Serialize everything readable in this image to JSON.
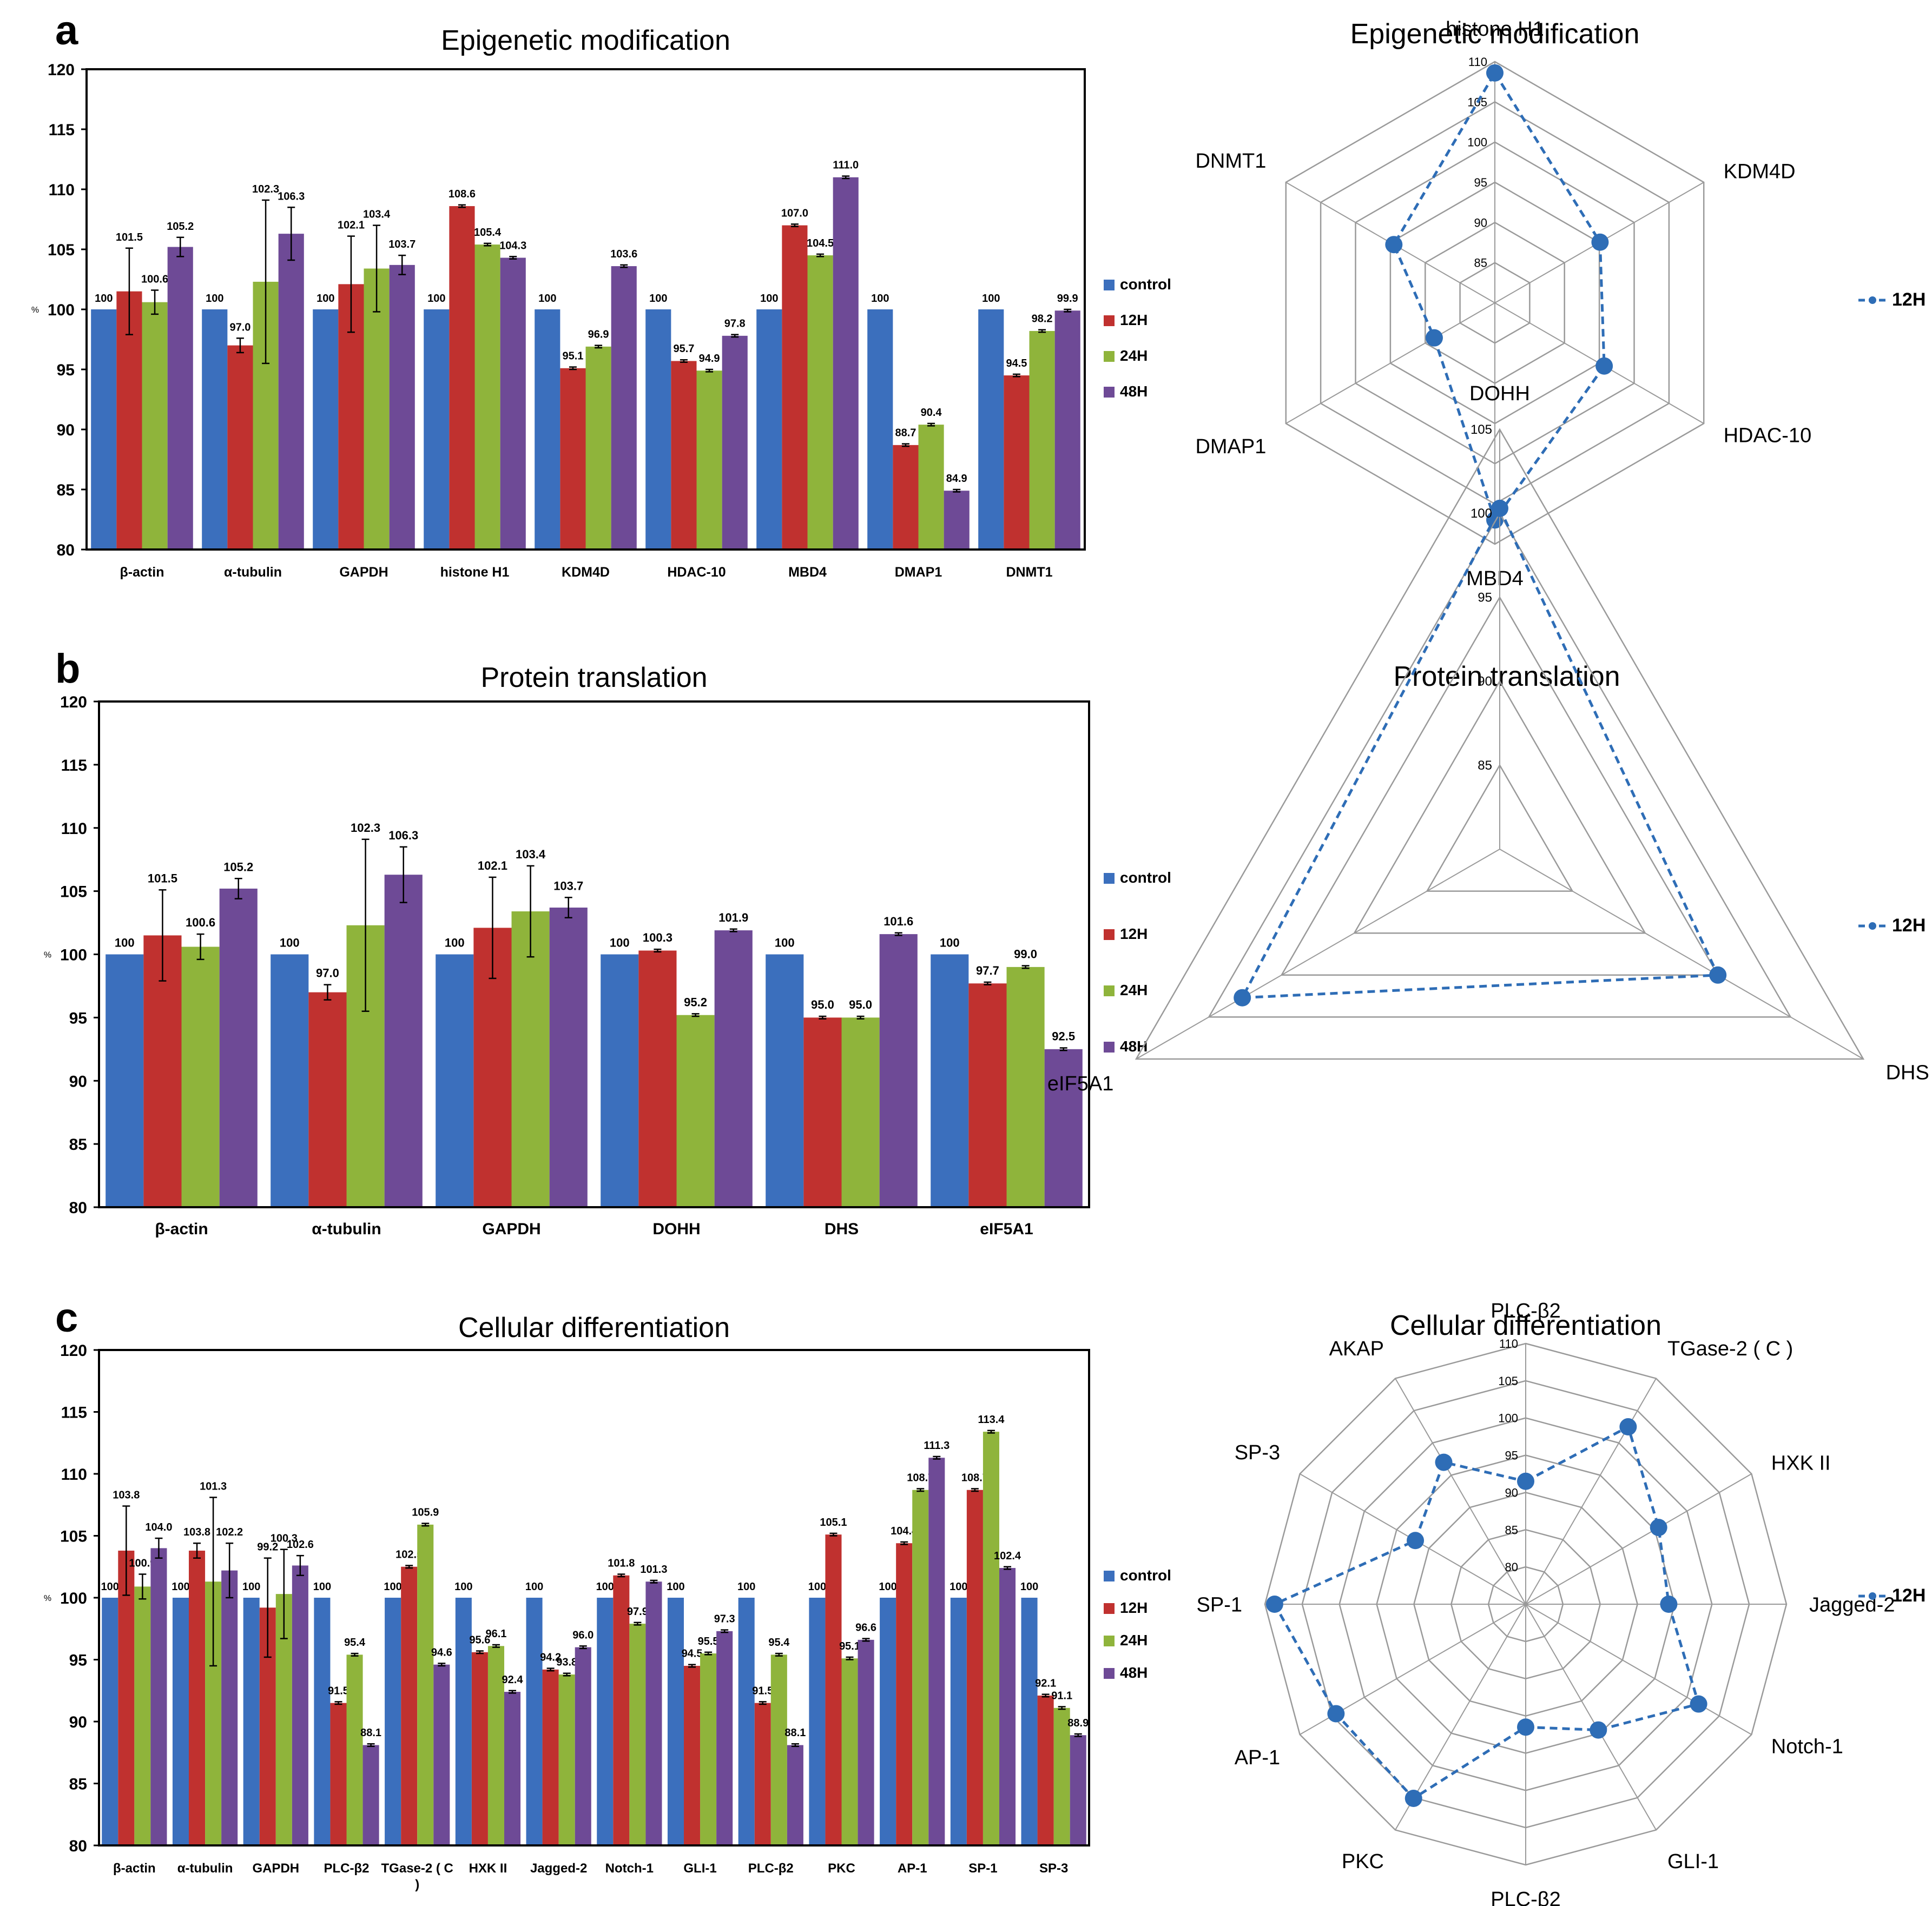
{
  "colors": {
    "control": "#3b6fbd",
    "h12": "#c0312f",
    "h24": "#8fb43b",
    "h48": "#6e4a96",
    "radar": "#2e6db6",
    "axis": "#000000",
    "grid": "#9a9a9a"
  },
  "panel_letters": [
    "a",
    "b",
    "c"
  ],
  "chart_data": [
    {
      "id": "a-bar",
      "type": "bar",
      "panel": "a",
      "title": "Epigenetic modification",
      "ylabel": "%",
      "xlabel": "",
      "ylim": [
        80,
        120
      ],
      "yticks": [
        80,
        85,
        90,
        95,
        100,
        105,
        110,
        115,
        120
      ],
      "categories": [
        "β-actin",
        "α-tubulin",
        "GAPDH",
        "histone H1",
        "KDM4D",
        "HDAC-10",
        "MBD4",
        "DMAP1",
        "DNMT1"
      ],
      "series": [
        {
          "name": "control",
          "key": "control",
          "values": [
            100,
            100,
            100,
            100,
            100,
            100,
            100,
            100,
            100
          ],
          "labels": [
            "100",
            "100",
            "100",
            "100",
            "100",
            "100",
            "100",
            "100",
            "100"
          ],
          "errors": [
            0,
            0,
            0,
            0,
            0,
            0,
            0,
            0,
            0
          ]
        },
        {
          "name": "12H",
          "key": "h12",
          "values": [
            101.5,
            97.0,
            102.1,
            108.6,
            95.1,
            95.7,
            107.0,
            88.7,
            94.5
          ],
          "labels": [
            "101.5",
            "97.0",
            "102.1",
            "108.6",
            "95.1",
            "95.7",
            "107.0",
            "88.7",
            "94.5"
          ],
          "errors": [
            3.6,
            0.6,
            4.0,
            0.1,
            0.1,
            0.1,
            0.1,
            0.1,
            0.1
          ]
        },
        {
          "name": "24H",
          "key": "h24",
          "values": [
            100.6,
            102.3,
            103.4,
            105.4,
            96.9,
            94.9,
            104.5,
            90.4,
            98.2
          ],
          "labels": [
            "100.6",
            "102.3",
            "103.4",
            "105.4",
            "96.9",
            "94.9",
            "104.5",
            "90.4",
            "98.2"
          ],
          "errors": [
            1.0,
            6.8,
            3.6,
            0.1,
            0.1,
            0.1,
            0.1,
            0.1,
            0.1
          ]
        },
        {
          "name": "48H",
          "key": "h48",
          "values": [
            105.2,
            106.3,
            103.7,
            104.3,
            103.6,
            97.8,
            111.0,
            84.9,
            99.9
          ],
          "labels": [
            "105.2",
            "106.3",
            "103.7",
            "104.3",
            "103.6",
            "97.8",
            "111.0",
            "84.9",
            "99.9"
          ],
          "errors": [
            0.8,
            2.2,
            0.8,
            0.1,
            0.1,
            0.1,
            0.1,
            0.1,
            0.1
          ]
        }
      ],
      "legend": [
        "control",
        "12H",
        "24H",
        "48H"
      ],
      "legend_position": "right"
    },
    {
      "id": "a-radar",
      "type": "radar",
      "panel": "a",
      "title": "Epigenetic modification",
      "axes": [
        "histone H1",
        "KDM4D",
        "HDAC-10",
        "MBD4",
        "DMAP1",
        "DNMT1"
      ],
      "rlim": [
        80,
        110
      ],
      "rticks": [
        85,
        90,
        95,
        100,
        105,
        110
      ],
      "series": [
        {
          "name": "12H",
          "values": [
            108.6,
            95.1,
            95.7,
            107.0,
            88.7,
            94.5
          ]
        }
      ],
      "legend": [
        "12H"
      ],
      "legend_position": "right"
    },
    {
      "id": "b-bar",
      "type": "bar",
      "panel": "b",
      "title": "Protein translation",
      "ylabel": "%",
      "xlabel": "",
      "ylim": [
        80,
        120
      ],
      "yticks": [
        80,
        85,
        90,
        95,
        100,
        105,
        110,
        115,
        120
      ],
      "categories": [
        "β-actin",
        "α-tubulin",
        "GAPDH",
        "DOHH",
        "DHS",
        "eIF5A1"
      ],
      "series": [
        {
          "name": "control",
          "key": "control",
          "values": [
            100,
            100,
            100,
            100,
            100,
            100
          ],
          "labels": [
            "100",
            "100",
            "100",
            "100",
            "100",
            "100"
          ],
          "errors": [
            0,
            0,
            0,
            0,
            0,
            0
          ]
        },
        {
          "name": "12H",
          "key": "h12",
          "values": [
            101.5,
            97.0,
            102.1,
            100.3,
            95.0,
            97.7
          ],
          "labels": [
            "101.5",
            "97.0",
            "102.1",
            "100.3",
            "95.0",
            "97.7"
          ],
          "errors": [
            3.6,
            0.6,
            4.0,
            0.1,
            0.1,
            0.1
          ]
        },
        {
          "name": "24H",
          "key": "h24",
          "values": [
            100.6,
            102.3,
            103.4,
            95.2,
            95.0,
            99.0
          ],
          "labels": [
            "100.6",
            "102.3",
            "103.4",
            "95.2",
            "95.0",
            "99.0"
          ],
          "errors": [
            1.0,
            6.8,
            3.6,
            0.1,
            0.1,
            0.1
          ]
        },
        {
          "name": "48H",
          "key": "h48",
          "values": [
            105.2,
            106.3,
            103.7,
            101.9,
            101.6,
            92.5
          ],
          "labels": [
            "105.2",
            "106.3",
            "103.7",
            "101.9",
            "101.6",
            "92.5"
          ],
          "errors": [
            0.8,
            2.2,
            0.8,
            0.1,
            0.1,
            0.1
          ]
        }
      ],
      "legend": [
        "control",
        "12H",
        "24H",
        "48H"
      ],
      "legend_position": "right"
    },
    {
      "id": "b-radar",
      "type": "radar",
      "panel": "b",
      "title": "Protein translation",
      "axes": [
        "DOHH",
        "DHS",
        "eIF5A1"
      ],
      "rlim": [
        80,
        105
      ],
      "rticks": [
        85,
        90,
        95,
        100,
        105
      ],
      "series": [
        {
          "name": "12H",
          "values": [
            100.3,
            95.0,
            97.7
          ]
        }
      ],
      "legend": [
        "12H"
      ],
      "legend_position": "right"
    },
    {
      "id": "c-bar",
      "type": "bar",
      "panel": "c",
      "title": "Cellular differentiation",
      "ylabel": "%",
      "xlabel": "",
      "ylim": [
        80,
        120
      ],
      "yticks": [
        80,
        85,
        90,
        95,
        100,
        105,
        110,
        115,
        120
      ],
      "categories": [
        "β-actin",
        "α-tubulin",
        "GAPDH",
        "PLC-β2",
        "TGase-2 ( C )",
        "HXK II",
        "Jagged-2",
        "Notch-1",
        "GLI-1",
        "PLC-β2",
        "PKC",
        "AP-1",
        "SP-1",
        "SP-3"
      ],
      "series": [
        {
          "name": "control",
          "key": "control",
          "values": [
            100,
            100,
            100,
            100,
            100,
            100,
            100,
            100,
            100,
            100,
            100,
            100,
            100,
            100
          ],
          "labels": [
            "100",
            "100",
            "100",
            "100",
            "100",
            "100",
            "100",
            "100",
            "100",
            "100",
            "100",
            "100",
            "100",
            "100"
          ],
          "errors": [
            0,
            0,
            0,
            0,
            0,
            0,
            0,
            0,
            0,
            0,
            0,
            0,
            0,
            0
          ]
        },
        {
          "name": "12H",
          "key": "h12",
          "values": [
            103.8,
            103.8,
            99.2,
            91.5,
            102.5,
            95.6,
            94.2,
            101.8,
            94.5,
            91.5,
            105.1,
            104.4,
            108.7,
            92.1
          ],
          "labels": [
            "103.8",
            "103.8",
            "99.2",
            "91.5",
            "102.5",
            "95.6",
            "94.2",
            "101.8",
            "94.5",
            "91.5",
            "105.1",
            "104.4",
            "108.7",
            "92.1"
          ],
          "errors": [
            3.6,
            0.6,
            4.0,
            0.1,
            0.1,
            0.1,
            0.1,
            0.1,
            0.1,
            0.1,
            0.1,
            0.1,
            0.1,
            0.1
          ]
        },
        {
          "name": "24H",
          "key": "h24",
          "values": [
            100.9,
            101.3,
            100.3,
            95.4,
            105.9,
            96.1,
            93.8,
            97.9,
            95.5,
            95.4,
            95.1,
            108.7,
            113.4,
            91.1
          ],
          "labels": [
            "100.9",
            "101.3",
            "100.3",
            "95.4",
            "105.9",
            "96.1",
            "93.8",
            "97.9",
            "95.5",
            "95.4",
            "95.1",
            "108.7",
            "113.4",
            "91.1"
          ],
          "errors": [
            1.0,
            6.8,
            3.6,
            0.1,
            0.1,
            0.1,
            0.1,
            0.1,
            0.1,
            0.1,
            0.1,
            0.1,
            0.1,
            0.1
          ]
        },
        {
          "name": "48H",
          "key": "h48",
          "values": [
            104.0,
            102.2,
            102.6,
            88.1,
            94.6,
            92.4,
            96.0,
            101.3,
            97.3,
            88.1,
            96.6,
            111.3,
            102.4,
            88.9
          ],
          "labels": [
            "104.0",
            "102.2",
            "102.6",
            "88.1",
            "94.6",
            "92.4",
            "96.0",
            "101.3",
            "97.3",
            "88.1",
            "96.6",
            "111.3",
            "102.4",
            "88.9"
          ],
          "errors": [
            0.8,
            2.2,
            0.8,
            0.1,
            0.1,
            0.1,
            0.1,
            0.1,
            0.1,
            0.1,
            0.1,
            0.1,
            0.1,
            0.1
          ]
        }
      ],
      "legend": [
        "control",
        "12H",
        "24H",
        "48H"
      ],
      "legend_position": "right"
    },
    {
      "id": "c-radar",
      "type": "radar",
      "panel": "c",
      "title": "Cellular differentiation",
      "axes": [
        "PLC-β2",
        "TGase-2 ( C )",
        "HXK II",
        "Jagged-2",
        "Notch-1",
        "GLI-1",
        "PLC-β2",
        "PKC",
        "AP-1",
        "SP-1",
        "SP-3",
        "AKAP"
      ],
      "rlim": [
        75,
        110
      ],
      "rticks": [
        80,
        85,
        90,
        95,
        100,
        105,
        110
      ],
      "series": [
        {
          "name": "12H",
          "values": [
            91.5,
            102.5,
            95.6,
            94.2,
            101.8,
            94.5,
            91.5,
            105.1,
            104.4,
            108.7,
            92.1,
            97.0
          ]
        }
      ],
      "legend": [
        "12H"
      ],
      "legend_position": "right"
    }
  ]
}
